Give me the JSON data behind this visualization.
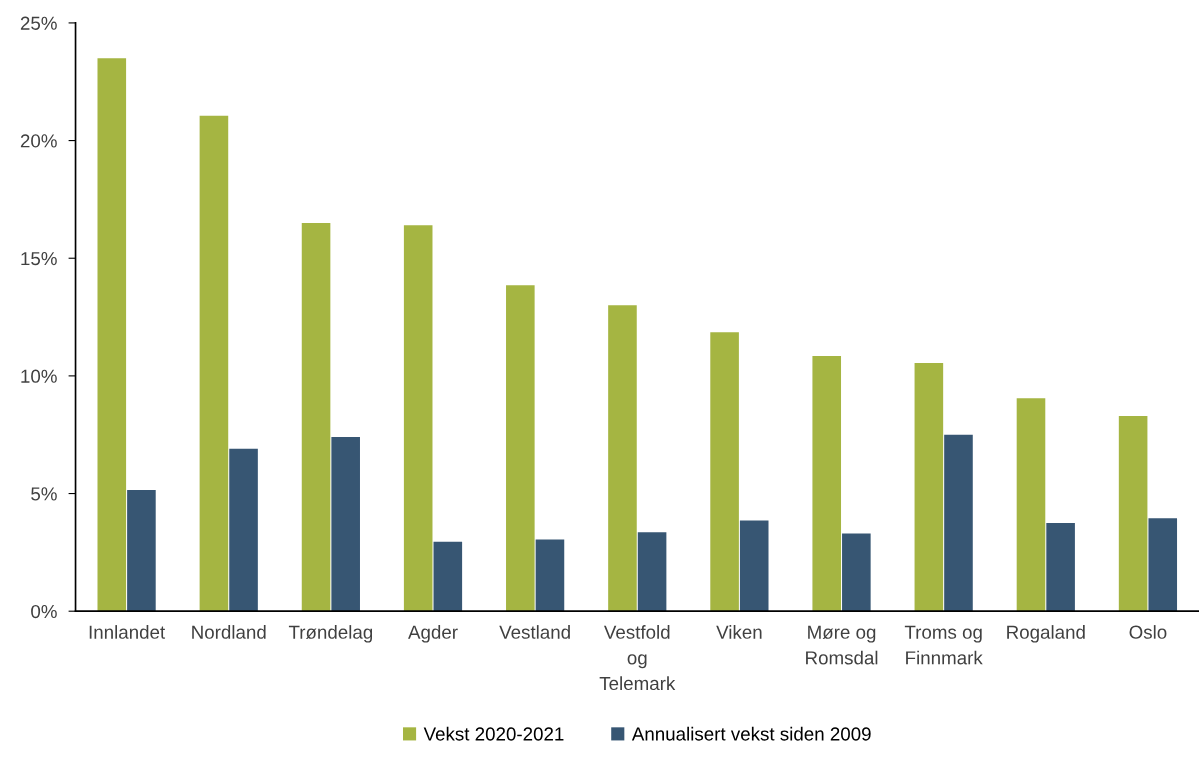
{
  "chart_data": {
    "type": "bar",
    "categories": [
      "Innlandet",
      "Nordland",
      "Trøndelag",
      "Agder",
      "Vestland",
      "Vestfold\nog\nTelemark",
      "Viken",
      "Møre og\nRomsdal",
      "Troms og\nFinnmark",
      "Rogaland",
      "Oslo"
    ],
    "series": [
      {
        "name": "Vekst 2020-2021",
        "color": "#a5b542",
        "values": [
          23.5,
          21.05,
          16.5,
          16.4,
          13.85,
          13.0,
          11.85,
          10.85,
          10.55,
          9.05,
          8.3
        ]
      },
      {
        "name": "Annualisert vekst siden 2009",
        "color": "#375673",
        "values": [
          5.15,
          6.9,
          7.4,
          2.95,
          3.05,
          3.35,
          3.85,
          3.3,
          7.5,
          3.75,
          3.95
        ]
      }
    ],
    "ylim": [
      0,
      25
    ],
    "yticks": [
      {
        "value": 0,
        "label": "0%"
      },
      {
        "value": 5,
        "label": "5%"
      },
      {
        "value": 10,
        "label": "10%"
      },
      {
        "value": 15,
        "label": "15%"
      },
      {
        "value": 20,
        "label": "20%"
      },
      {
        "value": 25,
        "label": "25%"
      }
    ],
    "grid": false,
    "legend": "bottom"
  }
}
